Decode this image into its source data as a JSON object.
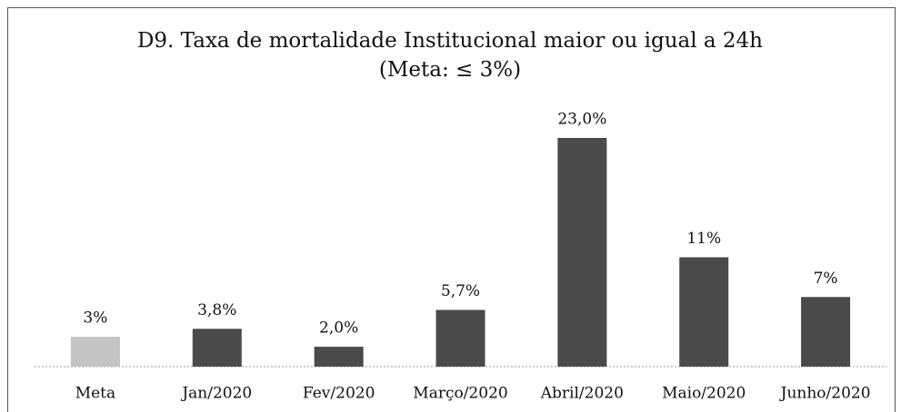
{
  "chart_data": {
    "type": "bar",
    "title": "D9. Taxa de mortalidade Institucional maior ou igual a 24h",
    "subtitle": "(Meta: ≤ 3%)",
    "categories": [
      "Meta",
      "Jan/2020",
      "Fev/2020",
      "Março/2020",
      "Abril/2020",
      "Maio/2020",
      "Junho/2020"
    ],
    "values": [
      3,
      3.8,
      2.0,
      5.7,
      23.0,
      11,
      7
    ],
    "value_labels": [
      "3%",
      "3,8%",
      "2,0%",
      "5,7%",
      "23,0%",
      "11%",
      "7%"
    ],
    "colors": [
      "#c4c4c4",
      "#4a4a4a",
      "#4a4a4a",
      "#4a4a4a",
      "#4a4a4a",
      "#4a4a4a",
      "#4a4a4a"
    ]
  }
}
